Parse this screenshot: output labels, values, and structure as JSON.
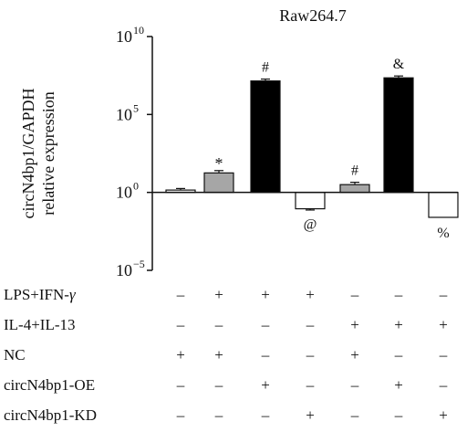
{
  "chart_data": {
    "type": "bar",
    "title": "Raw264.7",
    "ylabel_lines": [
      "circN4bp1/GAPDH",
      "relative expression"
    ],
    "yscale": "log10",
    "ylim": [
      1e-05,
      10000000000.0
    ],
    "baseline": 1,
    "ytick_labels": [
      {
        "exp": -5,
        "base": "10",
        "sup": "−5"
      },
      {
        "exp": 0,
        "base": "10",
        "sup": "0"
      },
      {
        "exp": 5,
        "base": "10",
        "sup": "5"
      },
      {
        "exp": 10,
        "base": "10",
        "sup": "10"
      }
    ],
    "bars": [
      {
        "log10_value": 0.15,
        "error_log10": 0.1,
        "fill": "#ffffff",
        "annotation": ""
      },
      {
        "log10_value": 1.25,
        "error_log10": 0.15,
        "fill": "#a6a6a6",
        "annotation": "*"
      },
      {
        "log10_value": 7.15,
        "error_log10": 0.12,
        "fill": "#000000",
        "annotation": "#"
      },
      {
        "log10_value": -1.05,
        "error_log10": 0.08,
        "fill": "#ffffff",
        "annotation": "@"
      },
      {
        "log10_value": 0.5,
        "error_log10": 0.15,
        "fill": "#a6a6a6",
        "annotation": "#"
      },
      {
        "log10_value": 7.35,
        "error_log10": 0.12,
        "fill": "#000000",
        "annotation": "&"
      },
      {
        "log10_value": -1.6,
        "error_log10": 0.0,
        "fill": "#ffffff",
        "annotation": "%"
      }
    ],
    "conditions": [
      {
        "label": "LPS+IFN-",
        "label_greek": "γ",
        "signs": [
          "–",
          "+",
          "+",
          "+",
          "–",
          "–",
          "–"
        ]
      },
      {
        "label": "IL-4+IL-13",
        "label_greek": "",
        "signs": [
          "–",
          "–",
          "–",
          "–",
          "+",
          "+",
          "+"
        ]
      },
      {
        "label": "NC",
        "label_greek": "",
        "signs": [
          "+",
          "+",
          "–",
          "–",
          "+",
          "–",
          "–"
        ]
      },
      {
        "label": "circN4bp1-OE",
        "label_greek": "",
        "signs": [
          "–",
          "–",
          "+",
          "–",
          "–",
          "+",
          "–"
        ]
      },
      {
        "label": "circN4bp1-KD",
        "label_greek": "",
        "signs": [
          "–",
          "–",
          "–",
          "+",
          "–",
          "–",
          "+"
        ]
      }
    ]
  }
}
